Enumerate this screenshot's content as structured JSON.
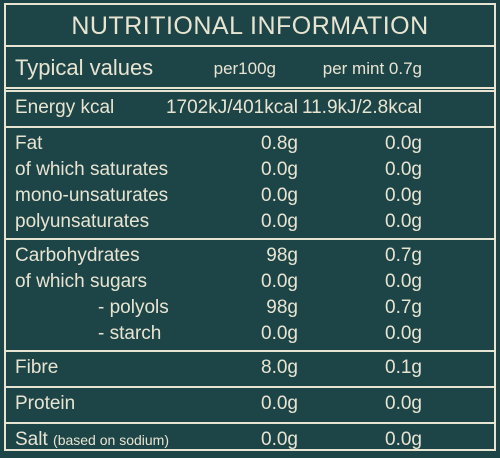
{
  "title": "NUTRITIONAL INFORMATION",
  "header": [
    "Typical values",
    "per100g",
    "per mint 0.7g"
  ],
  "groups": [
    {
      "rows": [
        {
          "label": "Energy kcal",
          "values": [
            "1702kJ/401kcal",
            "11.9kJ/2.8kcal"
          ]
        }
      ]
    },
    {
      "rows": [
        {
          "label": "Fat",
          "values": [
            "0.8g",
            "0.0g"
          ]
        },
        {
          "label": "of which saturates",
          "values": [
            "0.0g",
            "0.0g"
          ]
        },
        {
          "label": "mono-unsaturates",
          "values": [
            "0.0g",
            "0.0g"
          ]
        },
        {
          "label": "polyunsaturates",
          "values": [
            "0.0g",
            "0.0g"
          ]
        }
      ]
    },
    {
      "rows": [
        {
          "label": "Carbohydrates",
          "values": [
            "98g",
            "0.7g"
          ]
        },
        {
          "label": "of which sugars",
          "values": [
            "0.0g",
            "0.0g"
          ]
        },
        {
          "label": "- polyols",
          "values": [
            "98g",
            "0.7g"
          ]
        },
        {
          "label": "- starch",
          "values": [
            "0.0g",
            "0.0g"
          ]
        }
      ]
    },
    {
      "rows": [
        {
          "label": "Fibre",
          "values": [
            "8.0g",
            "0.1g"
          ]
        }
      ]
    },
    {
      "rows": [
        {
          "label": "Protein",
          "values": [
            "0.0g",
            "0.0g"
          ]
        }
      ]
    },
    {
      "rows": [
        {
          "label": "Salt",
          "note": "(based on sodium)",
          "values": [
            "0.0g",
            "0.0g"
          ]
        }
      ]
    }
  ]
}
